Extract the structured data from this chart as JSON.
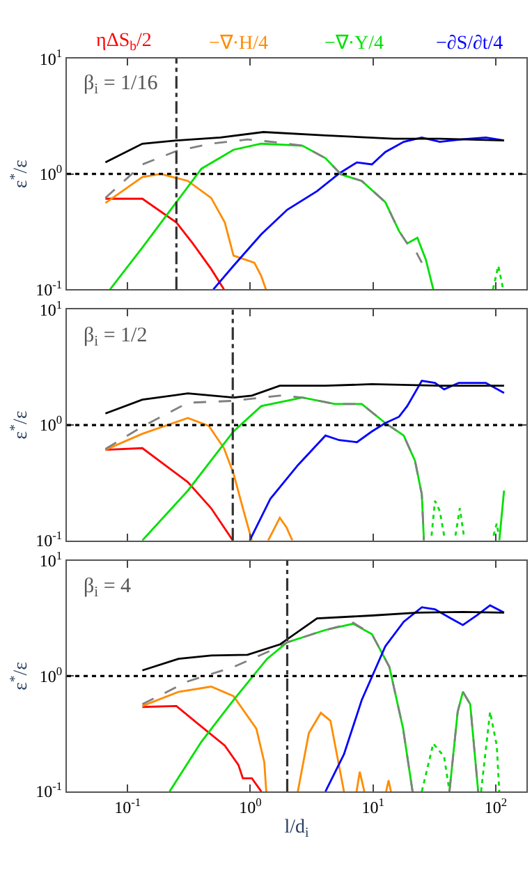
{
  "chart_data": [
    {
      "type": "line",
      "log": "xy",
      "xlim": [
        0.032,
        178
      ],
      "ylim": [
        0.1,
        10
      ],
      "tick_labels": "y",
      "legend": "top",
      "ylabel": "ε$^{*}$/ε",
      "annotations": [
        "β$_{i}$ = 1/16"
      ],
      "xticks": [
        {
          "value": 0.1,
          "label": "10$^{-1}$"
        },
        {
          "value": 1,
          "label": "10$^{0}$"
        },
        {
          "value": 10,
          "label": "10$^{1}$"
        },
        {
          "value": 100,
          "label": "10$^{2}$"
        }
      ],
      "yticks": [
        {
          "value": 0.1,
          "label": "10$^{-1}$"
        },
        {
          "value": 1,
          "label": "10$^{0}$"
        },
        {
          "value": 10,
          "label": "10$^{1}$"
        }
      ],
      "ref_lines": [
        {
          "axis": "y",
          "value": 1,
          "line_style": "dotted",
          "color": "#000000"
        },
        {
          "axis": "x",
          "value": 0.25,
          "line_style": "dashdot",
          "color": "#333333"
        }
      ],
      "series": [
        {
          "name": "ηΔS$_{b}$/2",
          "color": "#ff0000",
          "x": [
            0.066,
            0.132,
            0.25,
            0.34,
            0.48,
            0.61
          ],
          "values": [
            0.61,
            0.61,
            0.38,
            0.25,
            0.15,
            0.1
          ]
        },
        {
          "name": "−∇·H/4",
          "color": "#ff8c00",
          "x": [
            0.066,
            0.132,
            0.186,
            0.31,
            0.48,
            0.62,
            0.73,
            1.08,
            1.23,
            1.34
          ],
          "values": [
            0.56,
            0.94,
            1.0,
            0.87,
            0.62,
            0.38,
            0.196,
            0.17,
            0.13,
            0.1
          ]
        },
        {
          "name": "−∇·Y/4",
          "color": "#00e000",
          "x": [
            0.072,
            0.132,
            0.25,
            0.4,
            0.73,
            1.23,
            2.66,
            4.1,
            5.5,
            8.1,
            12.6,
            16.3,
            19,
            23,
            27,
            31
          ],
          "values": [
            0.1,
            0.23,
            0.57,
            1.11,
            1.62,
            1.83,
            1.76,
            1.37,
            0.99,
            0.87,
            0.57,
            0.32,
            0.25,
            0.28,
            0.18,
            0.1
          ]
        },
        {
          "name": "−∂S/∂t/4",
          "color": "#0000ff",
          "x": [
            0.5,
            0.73,
            1.23,
            2.0,
            3.5,
            5.3,
            7.4,
            9.8,
            12.6,
            17.8,
            25,
            35,
            54,
            83,
            117
          ],
          "values": [
            0.1,
            0.16,
            0.3,
            0.49,
            0.71,
            1.01,
            1.26,
            1.21,
            1.55,
            1.9,
            2.07,
            1.9,
            2.0,
            2.07,
            1.95
          ]
        },
        {
          "color": "#00e000",
          "line_style": "dotted",
          "x": [
            95,
            105,
            115
          ],
          "values": [
            0.1,
            0.16,
            0.1
          ]
        },
        {
          "color": "#808080",
          "line_style": "dashed",
          "x": [
            0.066,
            0.132,
            0.25,
            0.48,
            0.95,
            1.5,
            2.66,
            4.1,
            5.5,
            8.1,
            12.6,
            16.3,
            19,
            22,
            25
          ],
          "values": [
            0.62,
            1.21,
            1.58,
            1.83,
            1.99,
            1.9,
            1.76,
            1.37,
            0.99,
            0.87,
            0.57,
            0.32,
            0.25,
            0.22,
            0.17
          ]
        },
        {
          "color": "#000000",
          "x": [
            0.066,
            0.132,
            0.25,
            0.57,
            1.28,
            4.1,
            14.8,
            35,
            117
          ],
          "values": [
            1.26,
            1.83,
            1.95,
            2.07,
            2.31,
            2.16,
            2.02,
            2.02,
            1.95
          ]
        }
      ]
    },
    {
      "type": "line",
      "log": "xy",
      "xlim": [
        0.032,
        178
      ],
      "ylim": [
        0.1,
        10
      ],
      "tick_labels": "y",
      "ylabel": "ε$^{*}$/ε",
      "annotations": [
        "β$_{i}$ = 1/2"
      ],
      "xticks": [
        {
          "value": 0.1,
          "label": "10$^{-1}$"
        },
        {
          "value": 1,
          "label": "10$^{0}$"
        },
        {
          "value": 10,
          "label": "10$^{1}$"
        },
        {
          "value": 100,
          "label": "10$^{2}$"
        }
      ],
      "yticks": [
        {
          "value": 0.1,
          "label": "10$^{-1}$"
        },
        {
          "value": 1,
          "label": "10$^{0}$"
        },
        {
          "value": 10,
          "label": "10$^{1}$"
        }
      ],
      "ref_lines": [
        {
          "axis": "y",
          "value": 1,
          "line_style": "dotted",
          "color": "#000000"
        },
        {
          "axis": "x",
          "value": 0.72,
          "line_style": "dashdot",
          "color": "#333333"
        }
      ],
      "series": [
        {
          "color": "#ff0000",
          "x": [
            0.066,
            0.132,
            0.31,
            0.48,
            0.72
          ],
          "values": [
            0.61,
            0.63,
            0.32,
            0.19,
            0.1
          ]
        },
        {
          "color": "#ff8c00",
          "x": [
            0.066,
            0.132,
            0.31,
            0.46,
            0.61,
            0.73,
            0.87,
            1.03,
            null,
            1.4,
            1.74,
            1.97,
            2.2
          ],
          "values": [
            0.61,
            0.84,
            1.15,
            0.98,
            0.63,
            0.38,
            0.19,
            0.1,
            null,
            0.1,
            0.157,
            0.13,
            0.1
          ]
        },
        {
          "color": "#00e000",
          "x": [
            0.132,
            0.31,
            0.73,
            1.23,
            2.66,
            4.9,
            8.1,
            12.6,
            17.8,
            22,
            25,
            26,
            null,
            107,
            117
          ],
          "values": [
            0.1,
            0.27,
            0.88,
            1.46,
            1.73,
            1.52,
            1.52,
            1.04,
            0.81,
            0.49,
            0.25,
            0.1,
            null,
            0.1,
            0.27
          ]
        },
        {
          "color": "#0000ff",
          "x": [
            0.99,
            1.46,
            2.45,
            4.1,
            5.3,
            7.4,
            9.8,
            12.6,
            16.3,
            19,
            25,
            32,
            38,
            50,
            83,
            117
          ],
          "values": [
            0.1,
            0.23,
            0.45,
            0.81,
            0.74,
            0.71,
            0.88,
            1.04,
            1.18,
            1.46,
            2.42,
            2.32,
            2.04,
            2.32,
            2.32,
            1.9
          ]
        },
        {
          "color": "#00e000",
          "line_style": "dotted",
          "x": [
            30,
            32,
            35,
            38,
            null,
            47,
            51,
            55,
            null,
            96,
            102,
            106
          ],
          "values": [
            0.11,
            0.22,
            0.18,
            0.11,
            null,
            0.11,
            0.19,
            0.11,
            null,
            0.11,
            0.14,
            0.11
          ]
        },
        {
          "color": "#808080",
          "line_style": "dashed",
          "x": [
            0.066,
            0.132,
            0.31,
            0.73,
            1.74,
            2.66,
            4.9,
            8.1,
            12.6,
            17.8,
            22,
            25,
            26
          ],
          "values": [
            0.62,
            0.97,
            1.56,
            1.62,
            1.8,
            1.73,
            1.52,
            1.52,
            1.04,
            0.81,
            0.49,
            0.25,
            0.1
          ]
        },
        {
          "color": "#000000",
          "x": [
            0.066,
            0.132,
            0.31,
            0.73,
            1.03,
            1.74,
            4.1,
            9.8,
            35,
            117
          ],
          "values": [
            1.26,
            1.66,
            1.88,
            1.73,
            1.8,
            2.19,
            2.19,
            2.26,
            2.19,
            2.19
          ]
        }
      ]
    },
    {
      "type": "line",
      "log": "xy",
      "xlim": [
        0.032,
        178
      ],
      "ylim": [
        0.1,
        10
      ],
      "xlabel": "l/d$_{i}$",
      "ylabel": "ε$^{*}$/ε",
      "annotations": [
        "β$_{i}$ = 4"
      ],
      "xticks": [
        {
          "value": 0.1,
          "label": "10$^{-1}$"
        },
        {
          "value": 1,
          "label": "10$^{0}$"
        },
        {
          "value": 10,
          "label": "10$^{1}$"
        },
        {
          "value": 100,
          "label": "10$^{2}$"
        }
      ],
      "yticks": [
        {
          "value": 0.1,
          "label": "10$^{-1}$"
        },
        {
          "value": 1,
          "label": "10$^{0}$"
        },
        {
          "value": 10,
          "label": "10$^{1}$"
        }
      ],
      "ref_lines": [
        {
          "axis": "y",
          "value": 1,
          "line_style": "dotted",
          "color": "#000000"
        },
        {
          "axis": "x",
          "value": 2.0,
          "line_style": "dashdot",
          "color": "#333333"
        }
      ],
      "series": [
        {
          "color": "#ff0000",
          "x": [
            0.132,
            0.25,
            0.37,
            0.62,
            0.8,
            0.87,
            1.03,
            1.23
          ],
          "values": [
            0.54,
            0.55,
            0.39,
            0.25,
            0.17,
            0.13,
            0.13,
            0.1
          ]
        },
        {
          "color": "#ff8c00",
          "x": [
            0.132,
            0.26,
            0.48,
            0.73,
            1.12,
            1.3,
            1.35,
            null,
            2.44,
            3.0,
            3.76,
            4.5,
            5.8,
            null,
            7.35,
            7.8,
            8.5,
            null,
            12.8,
            13.4,
            14.0
          ],
          "values": [
            0.55,
            0.73,
            0.81,
            0.67,
            0.35,
            0.18,
            0.1,
            null,
            0.1,
            0.32,
            0.48,
            0.41,
            0.1,
            null,
            0.1,
            0.148,
            0.1,
            null,
            0.1,
            0.125,
            0.1
          ]
        },
        {
          "color": "#00e000",
          "x": [
            0.22,
            0.4,
            0.73,
            1.37,
            2.0,
            4.1,
            6.9,
            9.8,
            13.6,
            17.6,
            21,
            null,
            42,
            49,
            54,
            62,
            72
          ],
          "values": [
            0.1,
            0.27,
            0.62,
            1.41,
            1.96,
            2.51,
            2.84,
            2.31,
            1.2,
            0.35,
            0.1,
            null,
            0.1,
            0.49,
            0.73,
            0.57,
            0.1
          ]
        },
        {
          "color": "#0000ff",
          "x": [
            4.1,
            5.8,
            8.1,
            12.6,
            17.8,
            25,
            32,
            42,
            54,
            70,
            90,
            117
          ],
          "values": [
            0.1,
            0.21,
            0.62,
            1.81,
            2.96,
            3.95,
            3.79,
            3.21,
            2.77,
            3.35,
            4.1,
            3.55
          ]
        },
        {
          "color": "#00e000",
          "line_style": "dotted",
          "x": [
            25,
            31,
            38,
            42,
            null,
            76,
            90,
            102,
            107
          ],
          "values": [
            0.1,
            0.26,
            0.2,
            0.1,
            null,
            0.1,
            0.49,
            0.25,
            0.1
          ]
        },
        {
          "color": "#808080",
          "line_style": "dashed",
          "x": [
            0.132,
            0.31,
            0.73,
            1.46,
            2.0,
            4.1,
            6.9,
            9.8,
            13.6,
            17.6,
            21,
            null,
            42,
            49,
            54,
            62,
            72
          ],
          "values": [
            0.57,
            0.9,
            1.2,
            1.66,
            1.96,
            2.51,
            2.9,
            2.31,
            1.2,
            0.35,
            0.1,
            null,
            0.1,
            0.49,
            0.73,
            0.57,
            0.1
          ]
        },
        {
          "color": "#000000",
          "x": [
            0.132,
            0.26,
            0.48,
            0.95,
            1.74,
            3.5,
            9.8,
            23,
            54,
            117
          ],
          "values": [
            1.12,
            1.41,
            1.51,
            1.53,
            1.88,
            3.16,
            3.35,
            3.55,
            3.6,
            3.55
          ]
        }
      ]
    }
  ]
}
